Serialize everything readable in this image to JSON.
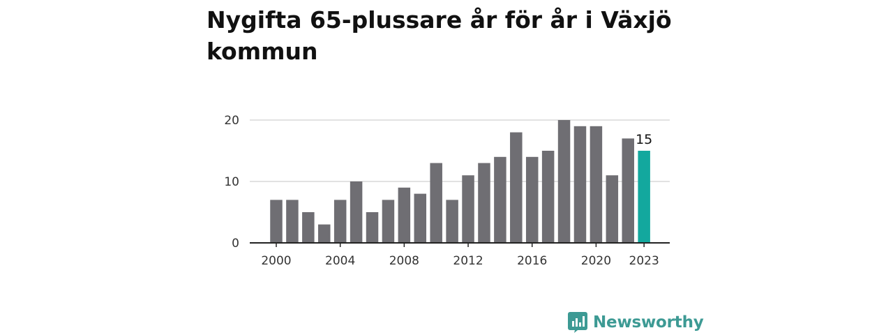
{
  "title": "Nygifta 65-plussare år för år i Växjö kommun",
  "brand": {
    "name": "Newsworthy",
    "color": "#3d9a94"
  },
  "chart_data": {
    "type": "bar",
    "title": "Nygifta 65-plussare år för år i Växjö kommun",
    "xlabel": "",
    "ylabel": "",
    "categories": [
      "2000",
      "2001",
      "2002",
      "2003",
      "2004",
      "2005",
      "2006",
      "2007",
      "2008",
      "2009",
      "2010",
      "2011",
      "2012",
      "2013",
      "2014",
      "2015",
      "2016",
      "2017",
      "2018",
      "2019",
      "2020",
      "2021",
      "2022",
      "2023"
    ],
    "values": [
      7,
      7,
      5,
      3,
      7,
      10,
      5,
      7,
      9,
      8,
      13,
      7,
      11,
      13,
      14,
      18,
      14,
      15,
      20,
      19,
      19,
      11,
      17,
      15
    ],
    "ylim": [
      0,
      20
    ],
    "yticks": [
      0,
      10,
      20
    ],
    "xticks": [
      "2000",
      "2004",
      "2008",
      "2012",
      "2016",
      "2020",
      "2023"
    ],
    "highlight": {
      "category": "2023",
      "label": "15"
    },
    "grid": true,
    "colors": {
      "bar": "#6f6e73",
      "highlight": "#13a89e",
      "grid": "#d9d9d9",
      "axis": "#222222"
    }
  }
}
